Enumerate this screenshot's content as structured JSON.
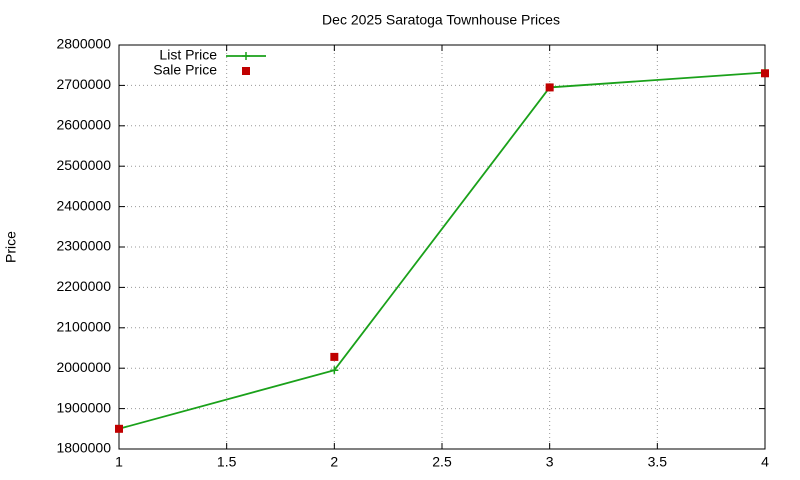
{
  "chart_data": {
    "type": "line",
    "title": "Dec 2025 Saratoga Townhouse Prices",
    "y_label": "Price",
    "x": [
      1,
      2,
      3,
      4
    ],
    "series": [
      {
        "name": "List Price",
        "color": "#1aa11a",
        "values": [
          1850000,
          1995000,
          2695000,
          2732000
        ],
        "line": true,
        "marker": "plus"
      },
      {
        "name": "Sale Price",
        "color": "#c00000",
        "values": [
          1850000,
          2028000,
          2695000,
          2730000
        ],
        "line": false,
        "marker": "square"
      }
    ],
    "xlim": [
      1,
      4
    ],
    "xticks": [
      1,
      1.5,
      2,
      2.5,
      3,
      3.5,
      4
    ],
    "ylim": [
      1800000,
      2800000
    ],
    "yticks": [
      1800000,
      1900000,
      2000000,
      2100000,
      2200000,
      2300000,
      2400000,
      2500000,
      2600000,
      2700000,
      2800000
    ],
    "grid": true,
    "legend": "top-left"
  }
}
